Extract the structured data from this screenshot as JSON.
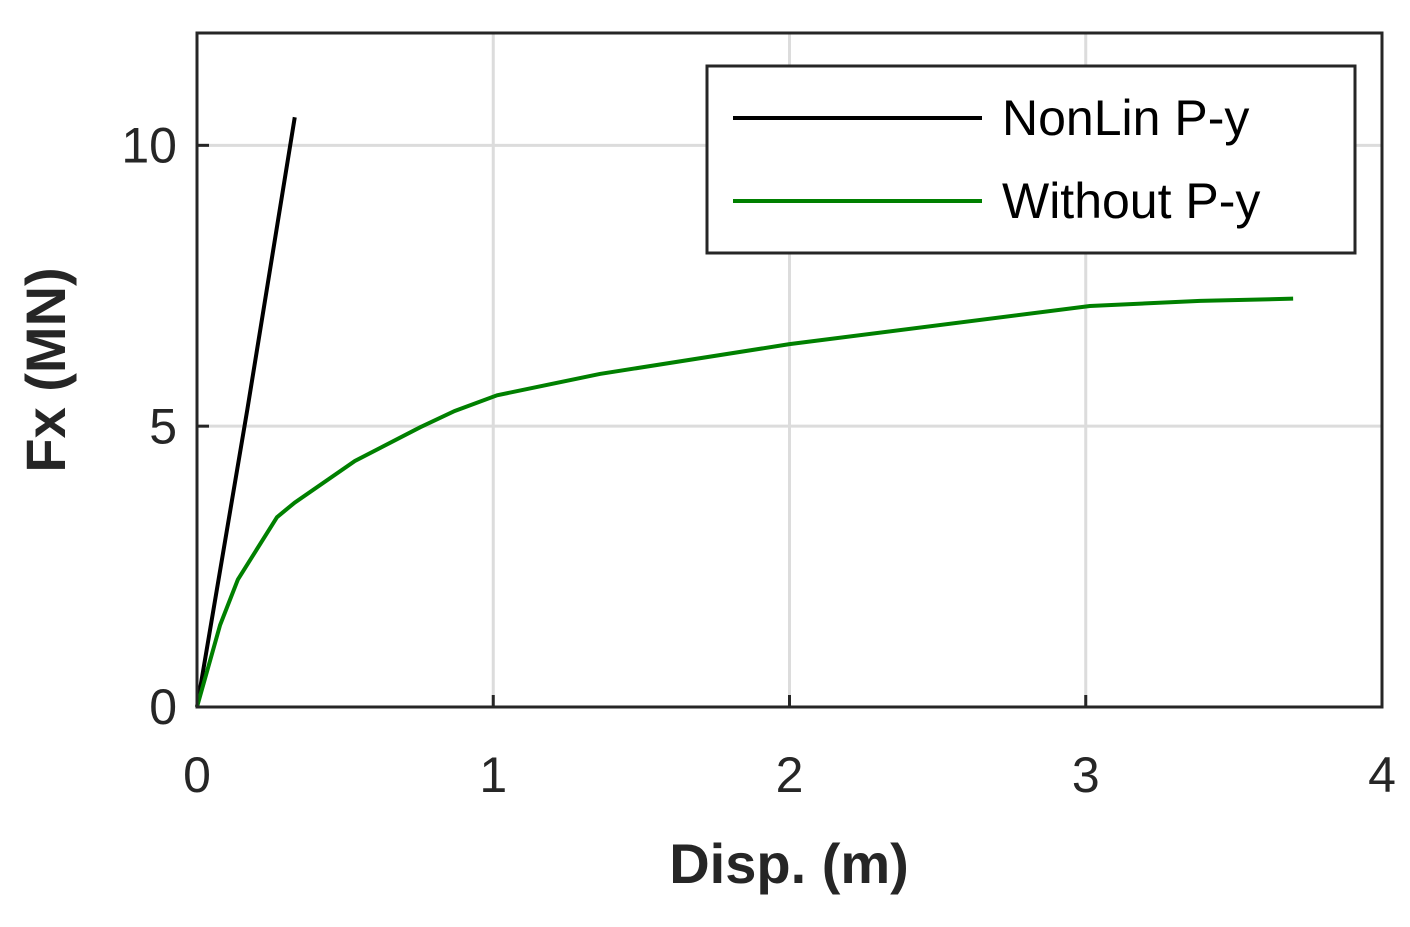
{
  "chart_data": {
    "type": "line",
    "xlabel": "Disp. (m)",
    "ylabel": "Fx (MN)",
    "xlim": [
      0,
      4
    ],
    "xticks": [
      0,
      1,
      2,
      3,
      4
    ],
    "ylim": [
      0,
      12
    ],
    "yticks": [
      0,
      5,
      10
    ],
    "grid": true,
    "legend": "top-right",
    "series": [
      {
        "name": "NonLin P-y",
        "color": "#000000",
        "x": [
          0,
          0.17,
          0.33
        ],
        "values": [
          0,
          5.3,
          10.5
        ]
      },
      {
        "name": "Without P-y",
        "color": "#008000",
        "x": [
          0,
          0.078,
          0.138,
          0.27,
          0.33,
          0.533,
          0.753,
          0.87,
          1.013,
          1.36,
          2.0,
          3.014,
          3.386,
          3.7
        ],
        "values": [
          0,
          1.46,
          2.27,
          3.38,
          3.64,
          4.38,
          4.98,
          5.27,
          5.55,
          5.93,
          6.46,
          7.14,
          7.23,
          7.27
        ]
      }
    ]
  }
}
